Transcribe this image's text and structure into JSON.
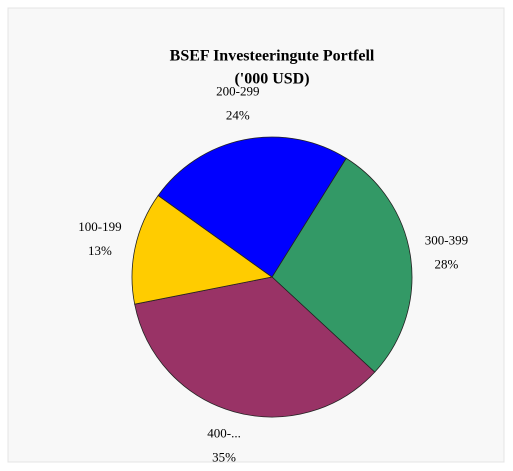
{
  "chart_data": {
    "type": "pie",
    "title": "BSEF Investeeringute Portfell",
    "subtitle": "('000 USD)",
    "categories": [
      "300-399",
      "400-...",
      "100-199",
      "200-299"
    ],
    "values": [
      28,
      35,
      13,
      24
    ],
    "value_labels": [
      "28%",
      "35%",
      "13%",
      "24%"
    ],
    "colors": [
      "#339966",
      "#993366",
      "#ffcc00",
      "#0000ff"
    ]
  }
}
